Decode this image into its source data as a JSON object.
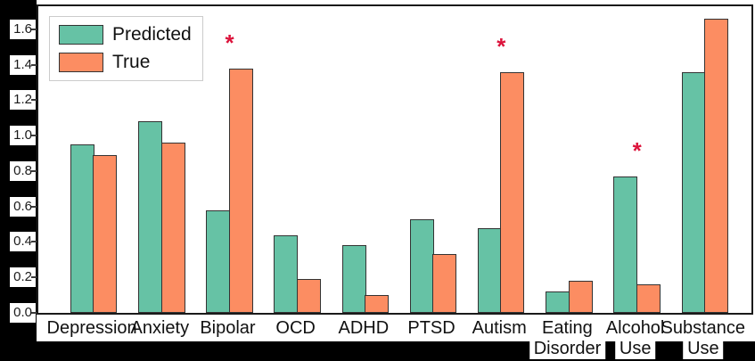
{
  "figure": {
    "background_color": "#000000",
    "plot_background_color": "#ffffff",
    "spine_color": "#1a1a1a"
  },
  "legend": {
    "items": [
      {
        "label": "Predicted",
        "color": "#66c2a5"
      },
      {
        "label": "True",
        "color": "#fc8d62"
      }
    ]
  },
  "chart_data": {
    "type": "bar",
    "title": "",
    "xlabel": "",
    "ylabel": "",
    "categories": [
      "Depression",
      "Anxiety",
      "Bipolar",
      "OCD",
      "ADHD",
      "PTSD",
      "Autism",
      "Eating Disorder",
      "Alcohol Use",
      "Substance Use"
    ],
    "category_label_lines": [
      [
        "Depression"
      ],
      [
        "Anxiety"
      ],
      [
        "Bipolar"
      ],
      [
        "OCD"
      ],
      [
        "ADHD"
      ],
      [
        "PTSD"
      ],
      [
        "Autism"
      ],
      [
        "Eating",
        "Disorder"
      ],
      [
        "Alcohol",
        "Use"
      ],
      [
        "Substance",
        "Use"
      ]
    ],
    "series": [
      {
        "name": "Predicted",
        "color": "#66c2a5",
        "values": [
          0.95,
          1.08,
          0.58,
          0.44,
          0.38,
          0.53,
          0.48,
          0.12,
          0.77,
          1.36
        ]
      },
      {
        "name": "True",
        "color": "#fc8d62",
        "values": [
          0.89,
          0.96,
          1.38,
          0.19,
          0.1,
          0.33,
          1.36,
          0.18,
          0.16,
          1.66
        ]
      }
    ],
    "significance": {
      "symbol": "*",
      "color": "#dc143c",
      "category_indices": [
        2,
        6,
        8
      ]
    },
    "ylim": [
      0,
      1.73
    ],
    "yticks": [
      0.0,
      0.2,
      0.4,
      0.6,
      0.8,
      1.0,
      1.2,
      1.4,
      1.6
    ],
    "ytick_labels": [
      "0.0",
      "0.2",
      "0.4",
      "0.6",
      "0.8",
      "1.0",
      "1.2",
      "1.4",
      "1.6"
    ],
    "grid": false,
    "legend_position": "upper-left",
    "bar_edge_color": "#333333"
  }
}
